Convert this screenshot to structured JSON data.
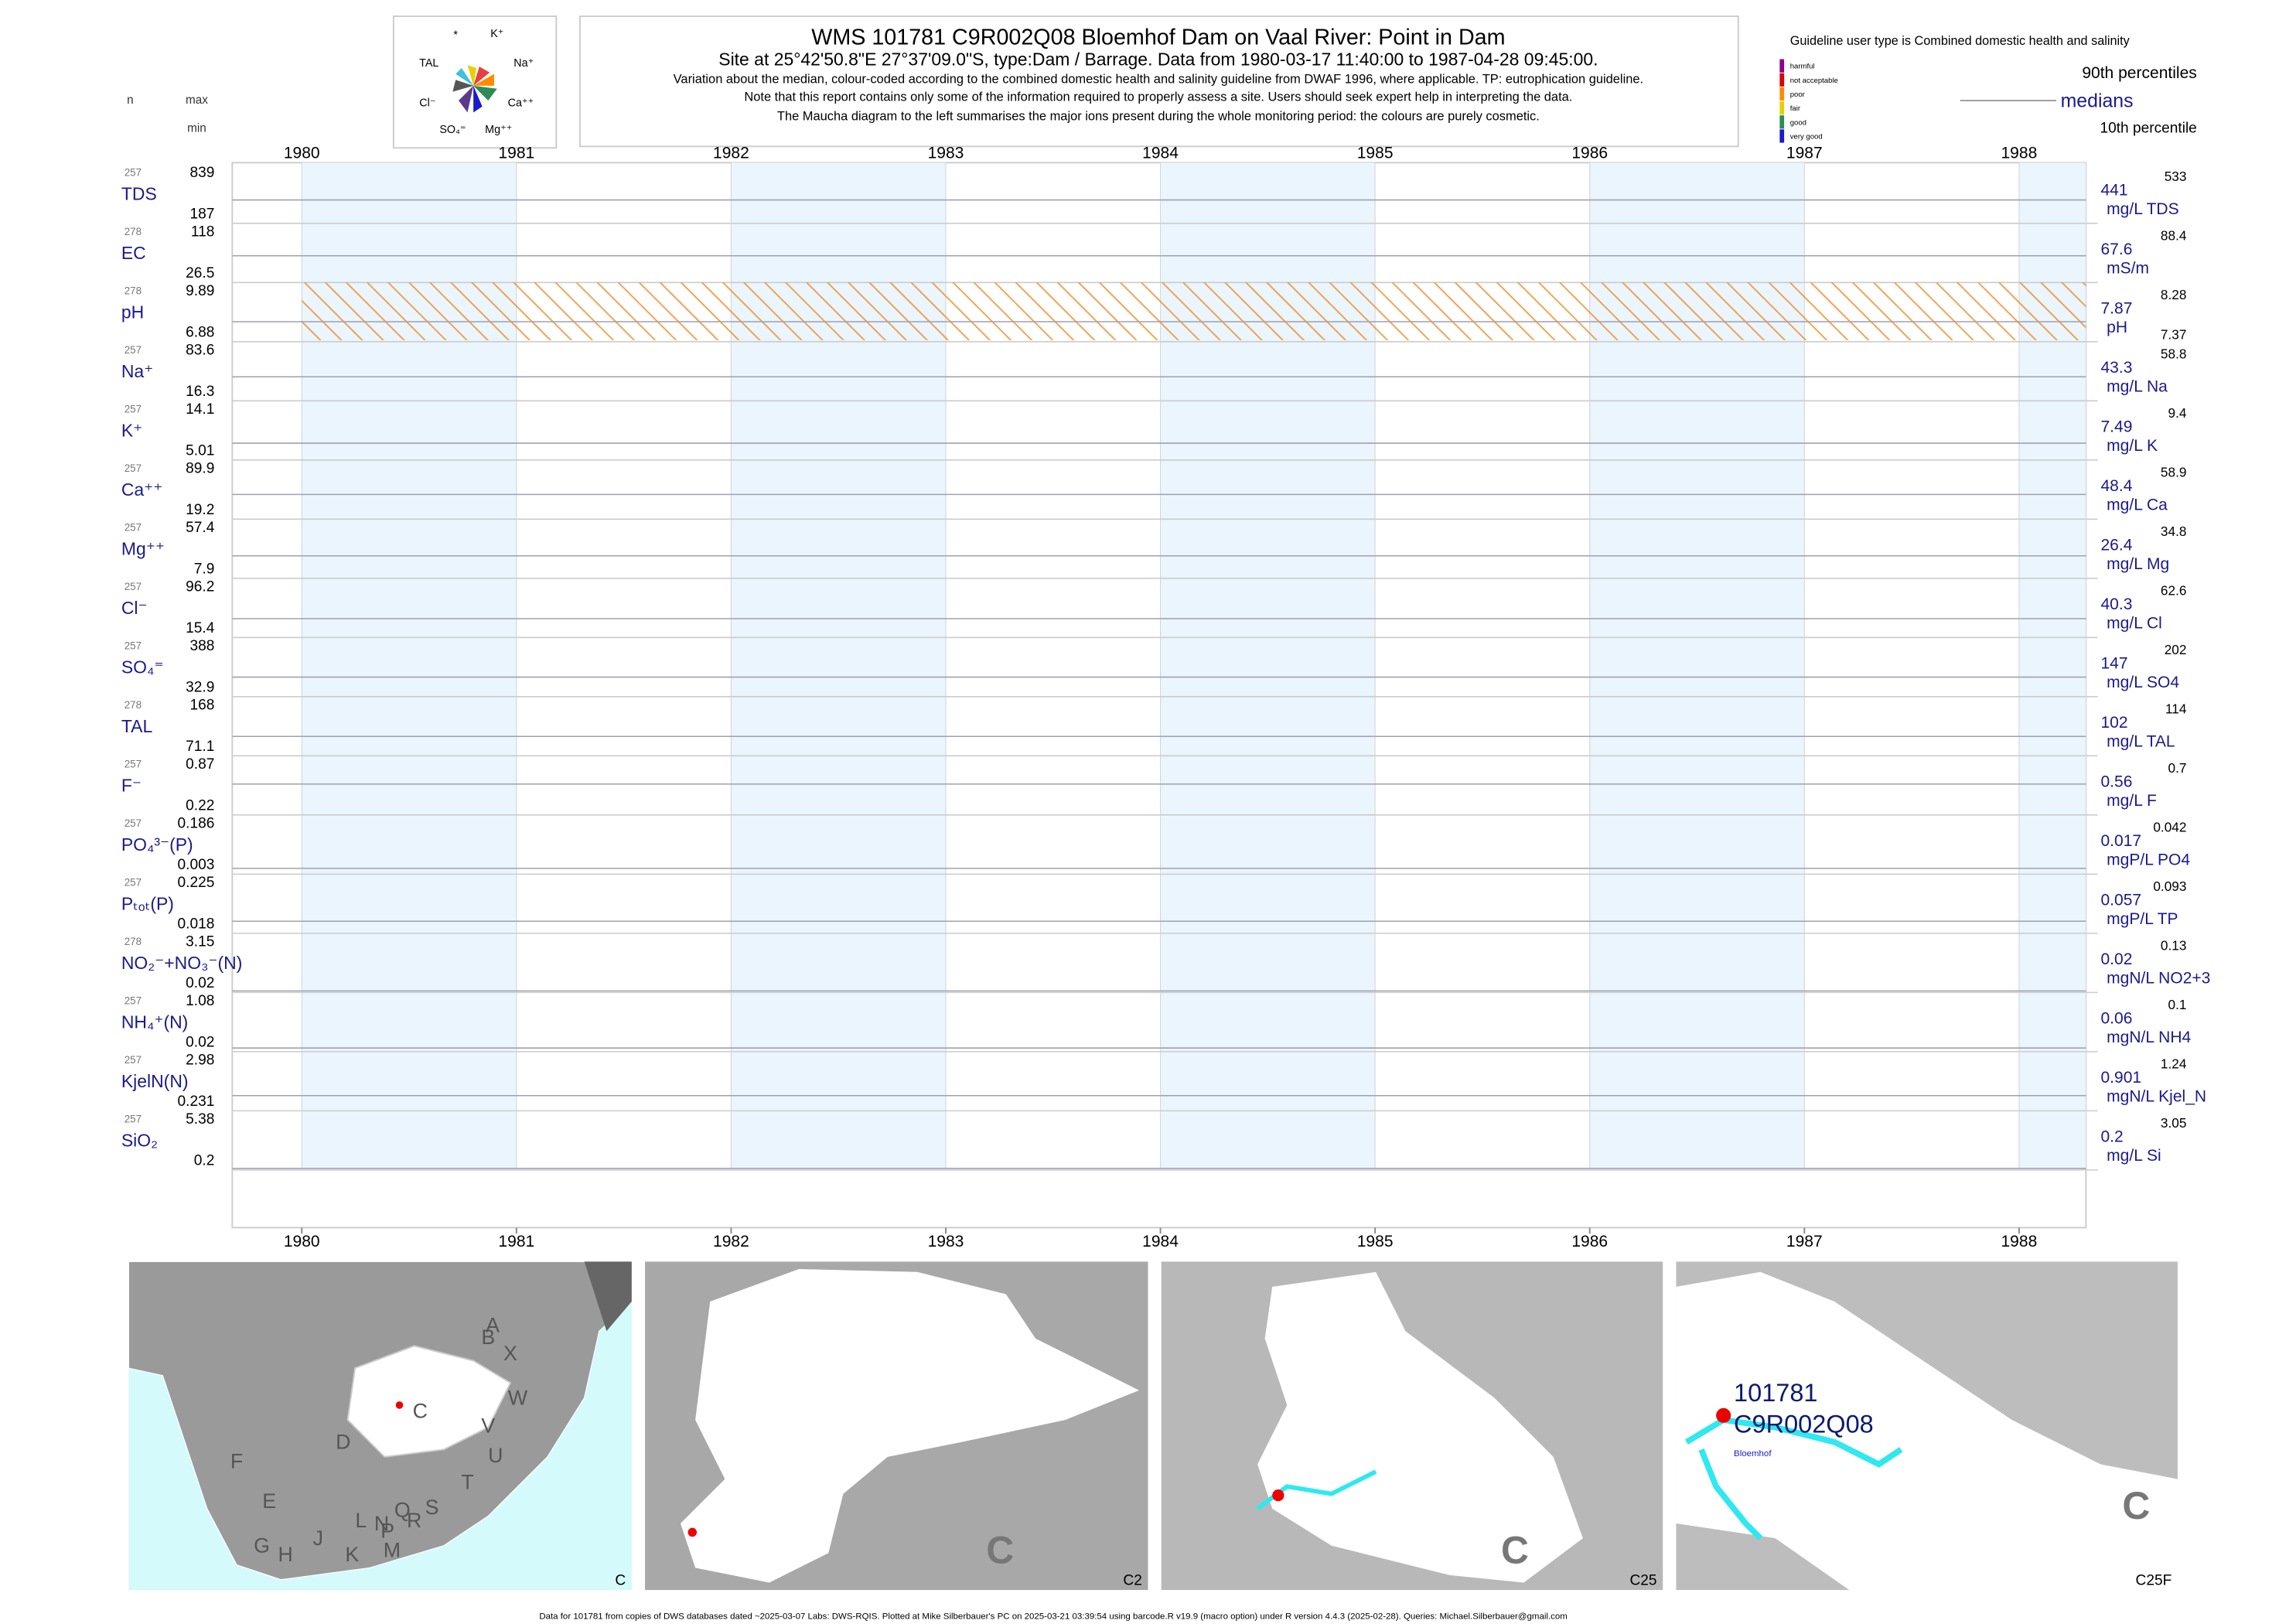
{
  "header": {
    "title": "WMS 101781 C9R002Q08 Bloemhof Dam on Vaal River: Point in Dam",
    "subtitle": "Site at 25°42'50.8\"E 27°37'09.0\"S, type:Dam / Barrage.  Data from 1980-03-17 11:40:00 to 1987-04-28 09:45:00.",
    "notes": [
      "Variation about the median,  colour-coded according to the combined domestic health and salinity guideline from DWAF 1996, where applicable. TP: eutrophication guideline.",
      "Note that this report contains only some of the information required to properly assess a site. Users should seek expert help in interpreting the data.",
      "The Maucha diagram to the left summarises the major ions present during the whole monitoring period: the colours are purely cosmetic."
    ],
    "col_n": "n",
    "col_max": "max",
    "col_min": "min"
  },
  "maucha": [
    "*",
    "K⁺",
    "TAL",
    "Na⁺",
    "Cl⁻",
    "Ca⁺⁺",
    "SO₄⁼",
    "Mg⁺⁺"
  ],
  "guideline": {
    "title": "Guideline user type is Combined domestic health and salinity",
    "levels": [
      {
        "label": "harmful",
        "color": "#8b008b"
      },
      {
        "label": "not acceptable",
        "color": "#e00000"
      },
      {
        "label": "poor",
        "color": "#ff8c00"
      },
      {
        "label": "fair",
        "color": "#e8d000"
      },
      {
        "label": "good",
        "color": "#2e8b57"
      },
      {
        "label": "very good",
        "color": "#1a1acd"
      }
    ],
    "p90": "90th percentiles",
    "medians": "medians",
    "p10": "10th percentile"
  },
  "years": [
    1980,
    1981,
    1982,
    1983,
    1984,
    1985,
    1986,
    1987,
    1988
  ],
  "rows": [
    {
      "name": "TDS",
      "n": 257,
      "max": 839,
      "min": 187,
      "median": 441,
      "p90": 533,
      "unit": "mg/L TDS"
    },
    {
      "name": "EC",
      "n": 278,
      "max": 118,
      "min": 26.5,
      "median": 67.6,
      "p90": 88.4,
      "unit": "mS/m"
    },
    {
      "name": "pH",
      "n": 278,
      "max": 9.89,
      "min": 6.88,
      "median": 7.87,
      "p90": 8.28,
      "p10": 7.37,
      "unit": "pH"
    },
    {
      "name": "Na⁺",
      "n": 257,
      "max": 83.6,
      "min": 16.3,
      "median": 43.3,
      "p90": 58.8,
      "unit": "mg/L Na"
    },
    {
      "name": "K⁺",
      "n": 257,
      "max": 14.1,
      "min": 5.01,
      "median": 7.49,
      "p90": 9.4,
      "unit": "mg/L K"
    },
    {
      "name": "Ca⁺⁺",
      "n": 257,
      "max": 89.9,
      "min": 19.2,
      "median": 48.4,
      "p90": 58.9,
      "unit": "mg/L Ca"
    },
    {
      "name": "Mg⁺⁺",
      "n": 257,
      "max": 57.4,
      "min": 7.9,
      "median": 26.4,
      "p90": 34.8,
      "unit": "mg/L Mg"
    },
    {
      "name": "Cl⁻",
      "n": 257,
      "max": 96.2,
      "min": 15.4,
      "median": 40.3,
      "p90": 62.6,
      "unit": "mg/L Cl"
    },
    {
      "name": "SO₄⁼",
      "n": 257,
      "max": 388,
      "min": 32.9,
      "median": 147,
      "p90": 202,
      "unit": "mg/L SO4"
    },
    {
      "name": "TAL",
      "n": 278,
      "max": 168,
      "min": 71.1,
      "median": 102,
      "p90": 114,
      "unit": "mg/L TAL"
    },
    {
      "name": "F⁻",
      "n": 257,
      "max": 0.87,
      "min": 0.22,
      "median": 0.56,
      "p90": 0.7,
      "unit": "mg/L F"
    },
    {
      "name": "PO₄³⁻(P)",
      "n": 257,
      "max": 0.186,
      "min": 0.003,
      "median": 0.017,
      "p90": 0.042,
      "unit": "mgP/L PO4"
    },
    {
      "name": "Pₜₒₜ(P)",
      "n": 257,
      "max": 0.225,
      "min": 0.018,
      "median": 0.057,
      "p90": 0.093,
      "unit": "mgP/L TP"
    },
    {
      "name": "NO₂⁻+NO₃⁻(N)",
      "n": 278,
      "max": 3.15,
      "min": 0.02,
      "median": 0.02,
      "p90": 0.13,
      "unit": "mgN/L NO2+3"
    },
    {
      "name": "NH₄⁺(N)",
      "n": 257,
      "max": 1.08,
      "min": 0.02,
      "median": 0.06,
      "p90": 0.1,
      "unit": "mgN/L NH4"
    },
    {
      "name": "KjelN(N)",
      "n": 257,
      "max": 2.98,
      "min": 0.231,
      "median": 0.901,
      "p90": 1.24,
      "unit": "mgN/L Kjel_N"
    },
    {
      "name": "SiO₂",
      "n": 257,
      "max": 5.38,
      "min": 0.2,
      "median": 0.2,
      "p90": 3.05,
      "unit": "mg/L Si"
    }
  ],
  "maps": [
    {
      "label": "C",
      "letters": [
        "A",
        "B",
        "X",
        "W",
        "V",
        "U",
        "T",
        "S",
        "R",
        "P",
        "Q",
        "N",
        "M",
        "L",
        "K",
        "J",
        "H",
        "G",
        "E",
        "F",
        "D",
        "C"
      ]
    },
    {
      "label": "C2",
      "big": "C"
    },
    {
      "label": "C25",
      "big": "C"
    },
    {
      "label": "C25F",
      "big": "C",
      "site_id": "101781",
      "site_code": "C9R002Q08",
      "place": "Bloemhof"
    }
  ],
  "footer": "Data for 101781 from copies of DWS databases dated ~2025-03-07 Labs: DWS-RQIS. Plotted at Mike Silberbauer's PC on 2025-03-21 03:39:54 using barcode.R v19.9 (macro option) under R version 4.4.3 (2025-02-28). Queries: Michael.Silberbauer@gmail.com"
}
